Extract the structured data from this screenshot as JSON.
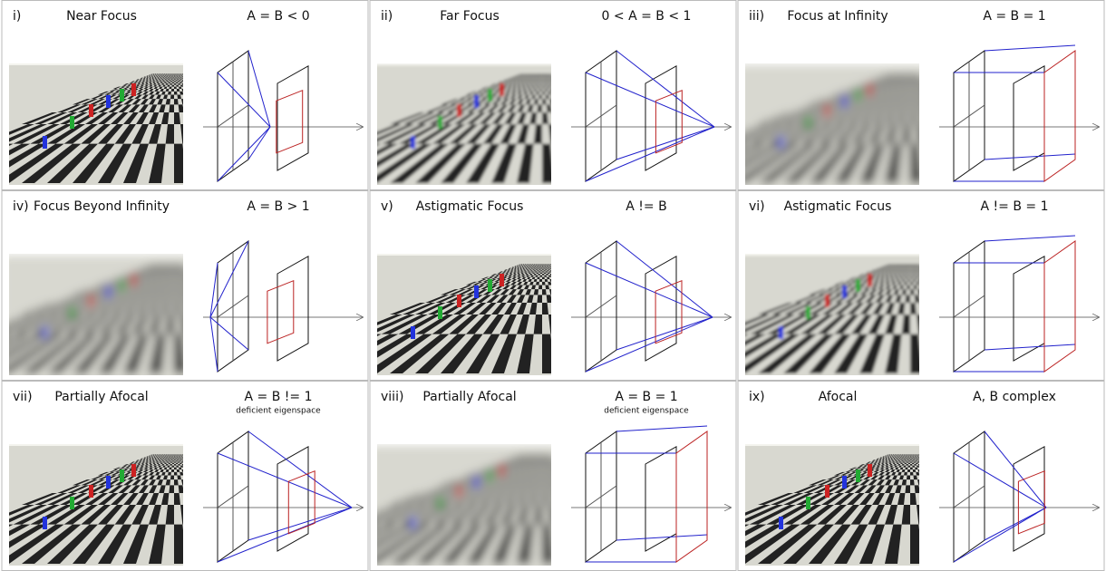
{
  "panels": [
    {
      "numeral": "i)",
      "title": "Near Focus",
      "formula": "A = B < 0"
    },
    {
      "numeral": "ii)",
      "title": "Far Focus",
      "formula": "0 < A = B < 1"
    },
    {
      "numeral": "iii)",
      "title": "Focus at Infinity",
      "formula": "A = B = 1"
    },
    {
      "numeral": "iv)",
      "title": "Focus Beyond Infinity",
      "formula": "A = B > 1"
    },
    {
      "numeral": "v)",
      "title": "Astigmatic Focus",
      "formula": "A != B"
    },
    {
      "numeral": "vi)",
      "title": "Astigmatic Focus",
      "formula": "A != B = 1"
    },
    {
      "numeral": "vii)",
      "title": "Partially Afocal",
      "formula": "A = B != 1",
      "note": "deficient eigenspace"
    },
    {
      "numeral": "viii)",
      "title": "Partially Afocal",
      "formula": "A = B = 1",
      "note": "deficient eigenspace"
    },
    {
      "numeral": "ix)",
      "title": "Afocal",
      "formula": "A, B  complex"
    }
  ]
}
